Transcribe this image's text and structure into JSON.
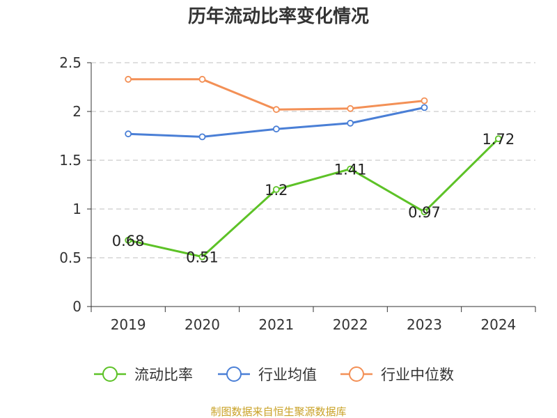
{
  "chart_data": {
    "type": "line",
    "title": "历年流动比率变化情况",
    "categories": [
      "2019",
      "2020",
      "2021",
      "2022",
      "2023",
      "2024"
    ],
    "y_ticks": [
      "0",
      "0.5",
      "1",
      "1.5",
      "2",
      "2.5"
    ],
    "ylim": [
      0,
      2.5
    ],
    "grid": true,
    "legend_position": "bottom",
    "series": [
      {
        "name": "流动比率",
        "color": "#5dc227",
        "values": [
          0.68,
          0.51,
          1.2,
          1.41,
          0.97,
          1.72
        ],
        "labels": [
          "0.68",
          "0.51",
          "1.2",
          "1.41",
          "0.97",
          "1.72"
        ]
      },
      {
        "name": "行业均值",
        "color": "#4a7fd6",
        "values": [
          1.77,
          1.74,
          1.82,
          1.88,
          2.04,
          null
        ]
      },
      {
        "name": "行业中位数",
        "color": "#f39056",
        "values": [
          2.33,
          2.33,
          2.02,
          2.03,
          2.11,
          null
        ]
      }
    ]
  },
  "footer": {
    "source": "制图数据来自恒生聚源数据库"
  }
}
